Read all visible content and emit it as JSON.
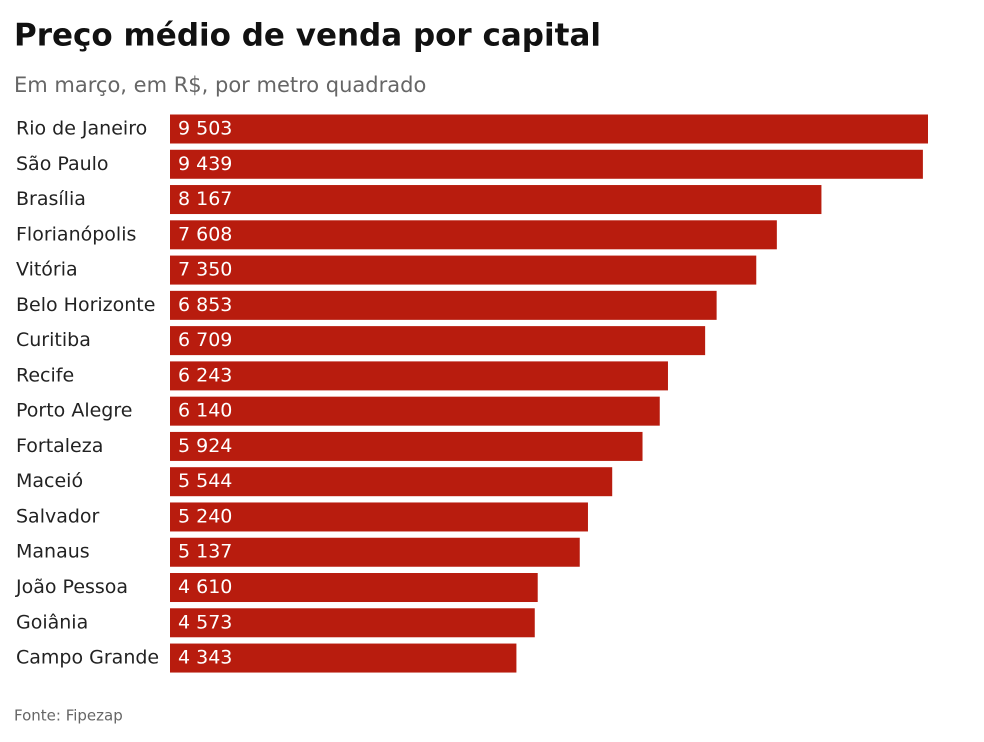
{
  "chart_data": {
    "type": "bar",
    "title": "Preço médio de venda por capital",
    "subtitle": "Em março, em R$, por metro quadrado",
    "source": "Fonte: Fipezap",
    "color": "#b81c0e",
    "categories": [
      "Rio de Janeiro",
      "São Paulo",
      "Brasília",
      "Florianópolis",
      "Vitória",
      "Belo Horizonte",
      "Curitiba",
      "Recife",
      "Porto Alegre",
      "Fortaleza",
      "Maceió",
      "Salvador",
      "Manaus",
      "João Pessoa",
      "Goiânia",
      "Campo Grande"
    ],
    "values": [
      9503,
      9439,
      8167,
      7608,
      7350,
      6853,
      6709,
      6243,
      6140,
      5924,
      5544,
      5240,
      5137,
      4610,
      4573,
      4343
    ],
    "value_labels": [
      "9 503",
      "9 439",
      "8 167",
      "7 608",
      "7 350",
      "6 853",
      "6 709",
      "6 243",
      "6 140",
      "5 924",
      "5 544",
      "5 240",
      "5 137",
      "4 610",
      "4 573",
      "4 343"
    ]
  }
}
